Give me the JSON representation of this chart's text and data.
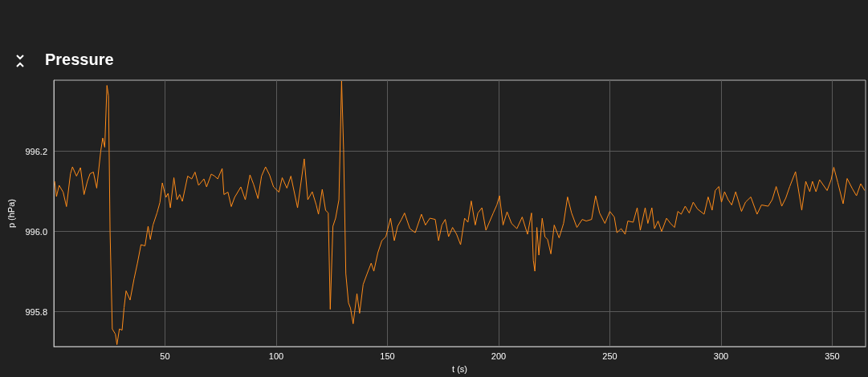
{
  "chart_data": {
    "type": "line",
    "title": "Pressure",
    "xlabel": "t (s)",
    "ylabel": "p (hPa)",
    "xlim": [
      0,
      365
    ],
    "ylim": [
      995.713,
      996.377
    ],
    "xticks": [
      50,
      100,
      150,
      200,
      250,
      300,
      350
    ],
    "yticks": [
      {
        "value": 995.8,
        "label": "995.8"
      },
      {
        "value": 996,
        "label": "996.0"
      },
      {
        "value": 996.2,
        "label": "996.2"
      }
    ],
    "grid": true,
    "marker": "none",
    "line_style": "solid",
    "series": [
      {
        "color": "#ff8c1a",
        "x": [
          0.4,
          1.2,
          2.4,
          4.2,
          5.7,
          7.5,
          8.4,
          10.2,
          12.0,
          13.6,
          15.1,
          16.3,
          17.8,
          19.3,
          21.1,
          22.0,
          22.9,
          23.9,
          24.6,
          25.3,
          26.3,
          27.7,
          28.4,
          29.5,
          30.7,
          31.6,
          32.5,
          34.3,
          36.1,
          37.6,
          39.2,
          41.0,
          42.4,
          43.4,
          44.6,
          46.4,
          47.7,
          48.8,
          50.4,
          51.4,
          52.4,
          54.0,
          55.4,
          56.6,
          57.8,
          60.2,
          62.0,
          63.5,
          65.1,
          67.5,
          68.7,
          70.8,
          72.3,
          73.7,
          75.7,
          76.5,
          78.3,
          79.8,
          81.3,
          84.1,
          86.1,
          88.2,
          89.8,
          91.8,
          93.4,
          95.2,
          97.0,
          98.8,
          101.2,
          102.7,
          104.8,
          106.6,
          109.6,
          112.6,
          114.2,
          116.2,
          118.0,
          119.0,
          120.7,
          122.2,
          123.4,
          124.3,
          125.5,
          126.7,
          128.2,
          129.4,
          130.3,
          131.3,
          132.5,
          133.4,
          134.6,
          136.3,
          137.5,
          139.1,
          140.9,
          142.7,
          143.9,
          145.7,
          147.5,
          149.3,
          151.4,
          153.1,
          154.6,
          156.3,
          157.7,
          160.1,
          162.5,
          165.3,
          167.1,
          169.1,
          171.5,
          173.0,
          174.5,
          176.0,
          177.5,
          179.3,
          181.1,
          182.9,
          184.7,
          186.2,
          187.7,
          189.5,
          190.7,
          192.5,
          194.3,
          197.6,
          199.2,
          200.4,
          202.0,
          203.8,
          205.8,
          208.2,
          210.6,
          213.0,
          214.8,
          215.6,
          216.3,
          217.2,
          218.1,
          219.6,
          220.8,
          222.0,
          223.5,
          225.0,
          227.2,
          229.2,
          231.0,
          232.8,
          235.2,
          237.6,
          239.4,
          241.8,
          243.6,
          245.4,
          247.8,
          250.0,
          252.0,
          253.2,
          255.1,
          256.9,
          258.1,
          260.5,
          262.3,
          263.7,
          265.9,
          267.1,
          268.9,
          270.1,
          271.7,
          273.3,
          275.5,
          277.3,
          279.1,
          280.6,
          282.1,
          283.9,
          285.7,
          287.5,
          289.4,
          292.4,
          294.2,
          296.0,
          297.4,
          299.0,
          300.2,
          301.6,
          303.2,
          304.8,
          306.6,
          309.2,
          311.0,
          313.4,
          316.2,
          318.2,
          321.2,
          323.0,
          324.8,
          327.3,
          329.1,
          330.9,
          333.5,
          336.3,
          338.1,
          339.9,
          341.1,
          342.7,
          344.3,
          347.7,
          349.5,
          350.7,
          352.5,
          354.9,
          356.7,
          359.1,
          360.9,
          362.8,
          364.6
        ],
        "values": [
          996.125,
          996.087,
          996.115,
          996.098,
          996.062,
          996.144,
          996.161,
          996.138,
          996.159,
          996.092,
          996.125,
          996.144,
          996.148,
          996.108,
          996.2,
          996.233,
          996.21,
          996.364,
          996.338,
          996.0,
          995.757,
          995.744,
          995.718,
          995.757,
          995.754,
          995.81,
          995.852,
          995.829,
          995.882,
          995.921,
          995.967,
          995.964,
          996.013,
          995.98,
          996.016,
          996.046,
          996.072,
          996.121,
          996.085,
          996.095,
          996.059,
          996.134,
          996.079,
          996.092,
          996.075,
          996.138,
          996.131,
          996.148,
          996.115,
          996.131,
          996.111,
          996.143,
          996.138,
          996.131,
          996.157,
          996.092,
          996.098,
          996.062,
          996.085,
          996.111,
          996.079,
          996.141,
          996.118,
          996.082,
          996.138,
          996.161,
          996.141,
          996.111,
          996.098,
          996.134,
          996.108,
          996.138,
          996.059,
          996.181,
          996.079,
          996.099,
          996.066,
          996.043,
          996.105,
          996.053,
          996.046,
          995.806,
          996.013,
          996.033,
          996.079,
          996.375,
          996.204,
          995.895,
          995.822,
          995.809,
          995.77,
          995.845,
          995.796,
          995.868,
          995.895,
          995.921,
          995.901,
          995.947,
          995.977,
          995.987,
          996.033,
          995.977,
          996.013,
          996.03,
          996.046,
          996.007,
          995.997,
          996.043,
          996.016,
          996.033,
          996.03,
          995.977,
          996.016,
          996.03,
          995.987,
          996.01,
          995.993,
          995.967,
          996.033,
          996.023,
          996.076,
          996.016,
          996.046,
          996.059,
          996.003,
          996.046,
          996.066,
          996.089,
          996.016,
          996.049,
          996.02,
          996.007,
          996.036,
          995.993,
          996.046,
          995.928,
          995.901,
          996.01,
          995.941,
          996.033,
          995.987,
          995.98,
          995.944,
          996.016,
          995.984,
          996.02,
          996.086,
          996.046,
          996.01,
          996.03,
          996.026,
          996.03,
          996.089,
          996.046,
          996.02,
          996.05,
          996.036,
          995.997,
          996.007,
          995.993,
          996.026,
          996.023,
          996.059,
          996.003,
          996.059,
          996.02,
          996.059,
          996.007,
          996.026,
          996.0,
          996.033,
          996.02,
          996.01,
          996.05,
          996.043,
          996.063,
          996.046,
          996.073,
          996.056,
          996.043,
          996.086,
          996.053,
          996.102,
          996.112,
          996.073,
          996.099,
          996.079,
          996.066,
          996.099,
          996.05,
          996.073,
          996.086,
          996.043,
          996.066,
          996.063,
          996.079,
          996.112,
          996.063,
          996.083,
          996.112,
          996.149,
          996.053,
          996.125,
          996.099,
          996.125,
          996.099,
          996.129,
          996.102,
          996.129,
          996.16,
          996.122,
          996.069,
          996.132,
          996.106,
          996.089,
          996.119,
          996.102
        ]
      }
    ]
  }
}
